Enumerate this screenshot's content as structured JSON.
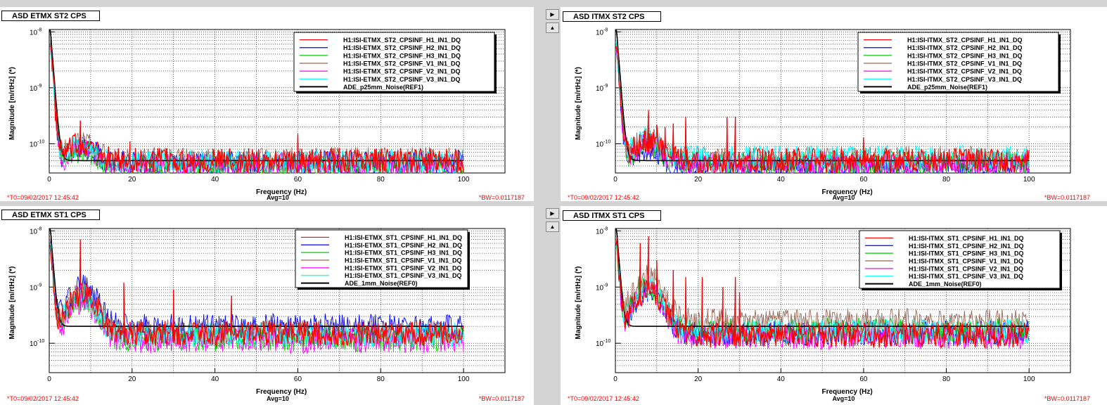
{
  "panels": [
    {
      "title": "ASD ETMX ST2 CPS",
      "t0": "*T0=09/02/2017 12:45:42",
      "avg": "Avg=10",
      "bw": "*BW=0.0117187",
      "nav_buttons": false,
      "chart_data": {
        "type": "line",
        "xlabel": "Frequency (Hz)",
        "ylabel": "Magnitude [m/rtHz] (*)",
        "xlim": [
          0,
          110
        ],
        "ylim": [
          3e-11,
          1.1e-08
        ],
        "yscale": "log",
        "xticks": [
          "0",
          "20",
          "40",
          "60",
          "80",
          "100"
        ],
        "yticks": [
          "10^-8",
          "10^-9",
          "10^-10"
        ],
        "grid": true,
        "legend_position": "top-right",
        "series": [
          {
            "name": "H1:ISI-ETMX_ST2_CPSINF_H1_IN1_DQ",
            "color": "#ff0000",
            "floor": 5e-11
          },
          {
            "name": "H1:ISI-ETMX_ST2_CPSINF_H2_IN1_DQ",
            "color": "#0000ff",
            "floor": 4.5e-11
          },
          {
            "name": "H1:ISI-ETMX_ST2_CPSINF_H3_IN1_DQ",
            "color": "#00cc00",
            "floor": 3.8e-11
          },
          {
            "name": "H1:ISI-ETMX_ST2_CPSINF_V1_IN1_DQ",
            "color": "#996655",
            "floor": 5.2e-11
          },
          {
            "name": "H1:ISI-ETMX_ST2_CPSINF_V2_IN1_DQ",
            "color": "#ff00ff",
            "floor": 4e-11
          },
          {
            "name": "H1:ISI-ETMX_ST2_CPSINF_V3_IN1_DQ",
            "color": "#00ffff",
            "floor": 4.8e-11
          },
          {
            "name": "ADE_p25mm_Noise(REF1)",
            "color": "#000000",
            "floor": null
          }
        ],
        "peaks": [
          [
            7.5,
            2.6e-10
          ],
          [
            19.5,
            1.1e-10
          ],
          [
            60,
            1.5e-10
          ]
        ],
        "low_hump": 1.0
      }
    },
    {
      "title": "ASD ITMX ST2 CPS",
      "t0": "*T0=09/02/2017 12:45:42",
      "avg": "Avg=10",
      "bw": "*BW=0.0117187",
      "nav_buttons": true,
      "chart_data": {
        "type": "line",
        "xlabel": "Frequency (Hz)",
        "ylabel": "Magnitude [m/rtHz] (*)",
        "xlim": [
          0,
          110
        ],
        "ylim": [
          3e-11,
          1.1e-08
        ],
        "yscale": "log",
        "xticks": [
          "0",
          "20",
          "40",
          "60",
          "80",
          "100"
        ],
        "yticks": [
          "10^-8",
          "10^-9",
          "10^-10"
        ],
        "grid": true,
        "legend_position": "top-right",
        "series": [
          {
            "name": "H1:ISI-ITMX_ST2_CPSINF_H1_IN1_DQ",
            "color": "#ff0000",
            "floor": 5e-11
          },
          {
            "name": "H1:ISI-ITMX_ST2_CPSINF_H2_IN1_DQ",
            "color": "#0000ff",
            "floor": 3.6e-11
          },
          {
            "name": "H1:ISI-ITMX_ST2_CPSINF_H3_IN1_DQ",
            "color": "#00cc00",
            "floor": 4.4e-11
          },
          {
            "name": "H1:ISI-ITMX_ST2_CPSINF_V1_IN1_DQ",
            "color": "#996655",
            "floor": 5.4e-11
          },
          {
            "name": "H1:ISI-ITMX_ST2_CPSINF_V2_IN1_DQ",
            "color": "#ff00ff",
            "floor": 4.2e-11
          },
          {
            "name": "H1:ISI-ITMX_ST2_CPSINF_V3_IN1_DQ",
            "color": "#00ffff",
            "floor": 5.6e-11
          },
          {
            "name": "ADE_p25mm_Noise(REF1)",
            "color": "#000000",
            "floor": null
          }
        ],
        "peaks": [
          [
            7,
            1.6e-10
          ],
          [
            8,
            4e-10
          ],
          [
            10,
            2.2e-10
          ],
          [
            12,
            2e-10
          ],
          [
            14,
            2.3e-10
          ],
          [
            17,
            3e-10
          ],
          [
            27,
            3e-10
          ],
          [
            29,
            3e-10
          ],
          [
            60,
            1.3e-10
          ]
        ],
        "low_hump": 1.3
      }
    },
    {
      "title": "ASD ETMX ST1 CPS",
      "t0": "*T0=09/02/2017 12:45:42",
      "avg": "Avg=10",
      "bw": "*BW=0.0117187",
      "nav_buttons": false,
      "chart_data": {
        "type": "line",
        "xlabel": "Frequency (Hz)",
        "ylabel": "Magnitude [m/rtHz] (*)",
        "xlim": [
          0,
          110
        ],
        "ylim": [
          3e-11,
          1.1e-08
        ],
        "yscale": "log",
        "xticks": [
          "0",
          "20",
          "40",
          "60",
          "80",
          "100"
        ],
        "yticks": [
          "10^-8",
          "10^-9",
          "10^-10"
        ],
        "grid": true,
        "legend_position": "top-right",
        "series": [
          {
            "name": "H1:ISI-ETMX_ST1_CPSINF_H1_IN1_DQ",
            "color": "#ff0000",
            "floor": 1.5e-10
          },
          {
            "name": "H1:ISI-ETMX_ST1_CPSINF_H2_IN1_DQ",
            "color": "#0000ff",
            "floor": 2e-10
          },
          {
            "name": "H1:ISI-ETMX_ST1_CPSINF_H3_IN1_DQ",
            "color": "#00cc00",
            "floor": 1.2e-10
          },
          {
            "name": "H1:ISI-ETMX_ST1_CPSINF_V1_IN1_DQ",
            "color": "#996655",
            "floor": 1.6e-10
          },
          {
            "name": "H1:ISI-ETMX_ST1_CPSINF_V2_IN1_DQ",
            "color": "#ff00ff",
            "floor": 1.1e-10
          },
          {
            "name": "H1:ISI-ETMX_ST1_CPSINF_V3_IN1_DQ",
            "color": "#00ffff",
            "floor": 1.4e-10
          },
          {
            "name": "ADE_1mm_Noise(REF0)",
            "color": "#000000",
            "floor": null
          }
        ],
        "peaks": [
          [
            7.5,
            7e-09
          ],
          [
            18,
            1.2e-09
          ],
          [
            30,
            9e-10
          ],
          [
            44,
            7e-10
          ]
        ],
        "low_hump": 4.0
      }
    },
    {
      "title": "ASD ITMX ST1 CPS",
      "t0": "*T0=09/02/2017 12:45:42",
      "avg": "Avg=10",
      "bw": "*BW=0.0117187",
      "nav_buttons": true,
      "chart_data": {
        "type": "line",
        "xlabel": "Frequency (Hz)",
        "ylabel": "Magnitude [m/rtHz] (*)",
        "xlim": [
          0,
          110
        ],
        "ylim": [
          3e-11,
          1.1e-08
        ],
        "yscale": "log",
        "xticks": [
          "0",
          "20",
          "40",
          "60",
          "80",
          "100"
        ],
        "yticks": [
          "10^-8",
          "10^-9",
          "10^-10"
        ],
        "grid": true,
        "legend_position": "top-right",
        "series": [
          {
            "name": "H1:ISI-ITMX_ST1_CPSINF_H1_IN1_DQ",
            "color": "#ff0000",
            "floor": 1.4e-10
          },
          {
            "name": "H1:ISI-ITMX_ST1_CPSINF_H2_IN1_DQ",
            "color": "#0000ff",
            "floor": 1.5e-10
          },
          {
            "name": "H1:ISI-ITMX_ST1_CPSINF_H3_IN1_DQ",
            "color": "#00cc00",
            "floor": 1.7e-10
          },
          {
            "name": "H1:ISI-ITMX_ST1_CPSINF_V1_IN1_DQ",
            "color": "#996655",
            "floor": 2.5e-10
          },
          {
            "name": "H1:ISI-ITMX_ST1_CPSINF_V2_IN1_DQ",
            "color": "#ff00ff",
            "floor": 1.3e-10
          },
          {
            "name": "H1:ISI-ITMX_ST1_CPSINF_V3_IN1_DQ",
            "color": "#00ffff",
            "floor": 1.6e-10
          },
          {
            "name": "ADE_1mm_Noise(REF0)",
            "color": "#000000",
            "floor": null
          }
        ],
        "peaks": [
          [
            6,
            6e-09
          ],
          [
            8,
            8e-09
          ],
          [
            10,
            3e-09
          ],
          [
            14,
            2e-09
          ],
          [
            17,
            1.5e-09
          ],
          [
            21,
            1.5e-09
          ],
          [
            26,
            1e-09
          ],
          [
            29,
            1.5e-09
          ],
          [
            30,
            8e-10
          ]
        ],
        "low_hump": 5.0
      }
    }
  ]
}
